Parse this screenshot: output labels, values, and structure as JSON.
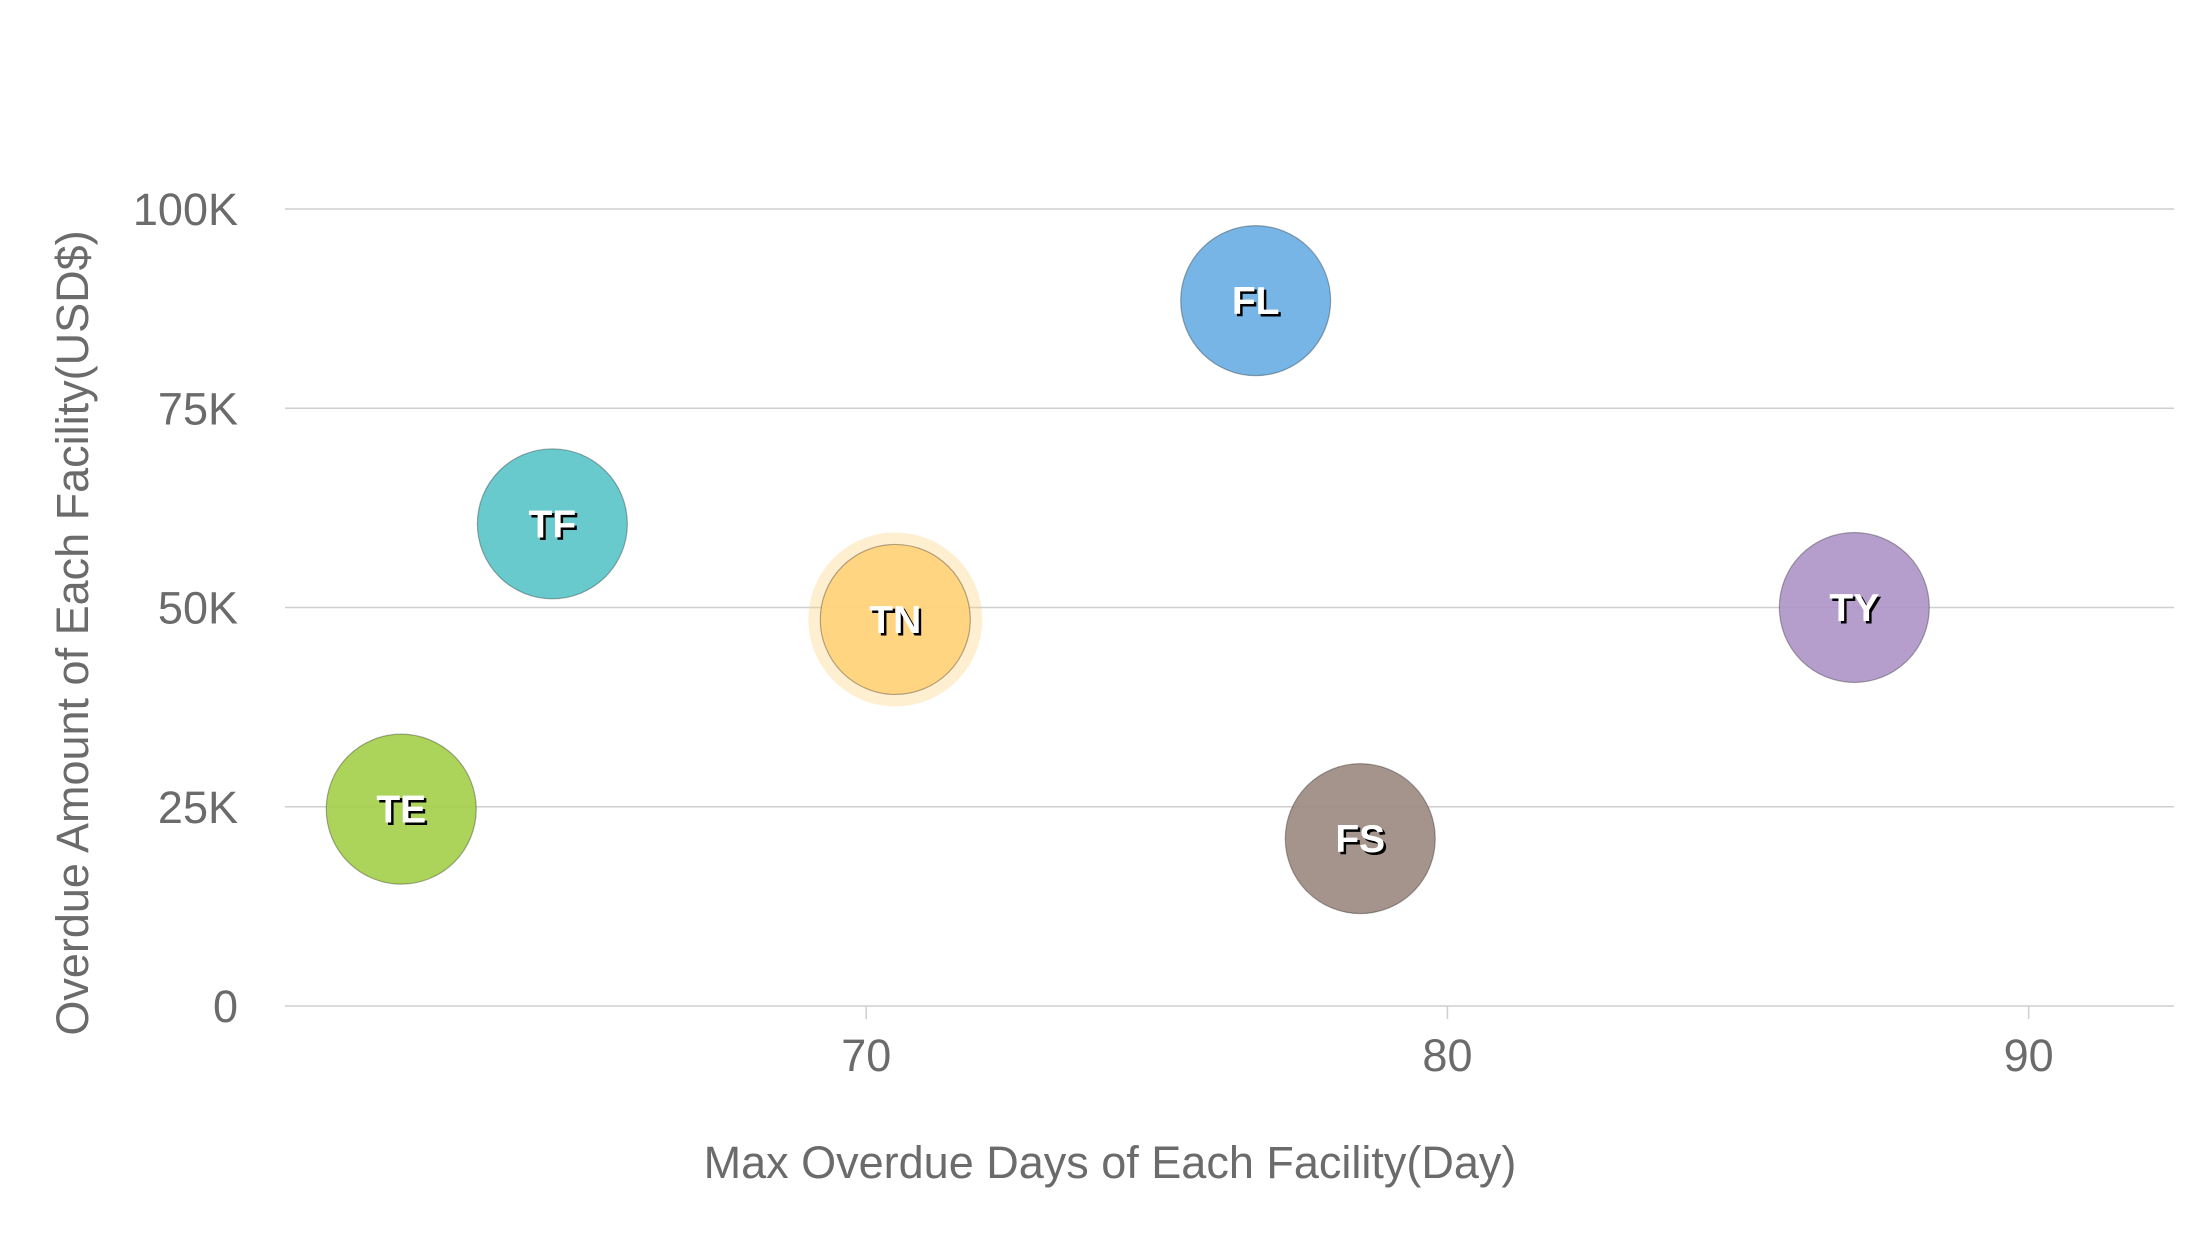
{
  "chart_data": {
    "type": "scatter",
    "subtype": "bubble",
    "title": "",
    "xlabel": "Max Overdue Days of Each Facility(Day)",
    "ylabel": "Overdue Amount of Each Facility(USD$)",
    "xlim": [
      60,
      92.5
    ],
    "ylim": [
      0,
      100000
    ],
    "x_ticks": [
      {
        "value": 70,
        "label": "70"
      },
      {
        "value": 80,
        "label": "80"
      },
      {
        "value": 90,
        "label": "90"
      }
    ],
    "y_ticks": [
      {
        "value": 0,
        "label": "0"
      },
      {
        "value": 25000,
        "label": "25K"
      },
      {
        "value": 50000,
        "label": "50K"
      },
      {
        "value": 75000,
        "label": "75K"
      },
      {
        "value": 100000,
        "label": "100K"
      }
    ],
    "grid": true,
    "legend": "none",
    "highlighted": "TN",
    "points": [
      {
        "label": "TE",
        "x": 62,
        "y": 24700,
        "color": "#a5cf4c"
      },
      {
        "label": "TF",
        "x": 64.6,
        "y": 60500,
        "color": "#5cc6ca"
      },
      {
        "label": "TN",
        "x": 70.5,
        "y": 48500,
        "color": "#ffd27a"
      },
      {
        "label": "FL",
        "x": 76.7,
        "y": 88500,
        "color": "#6aafe3"
      },
      {
        "label": "FS",
        "x": 78.5,
        "y": 21000,
        "color": "#9d8b81"
      },
      {
        "label": "TY",
        "x": 87,
        "y": 50000,
        "color": "#b096c8"
      }
    ]
  }
}
